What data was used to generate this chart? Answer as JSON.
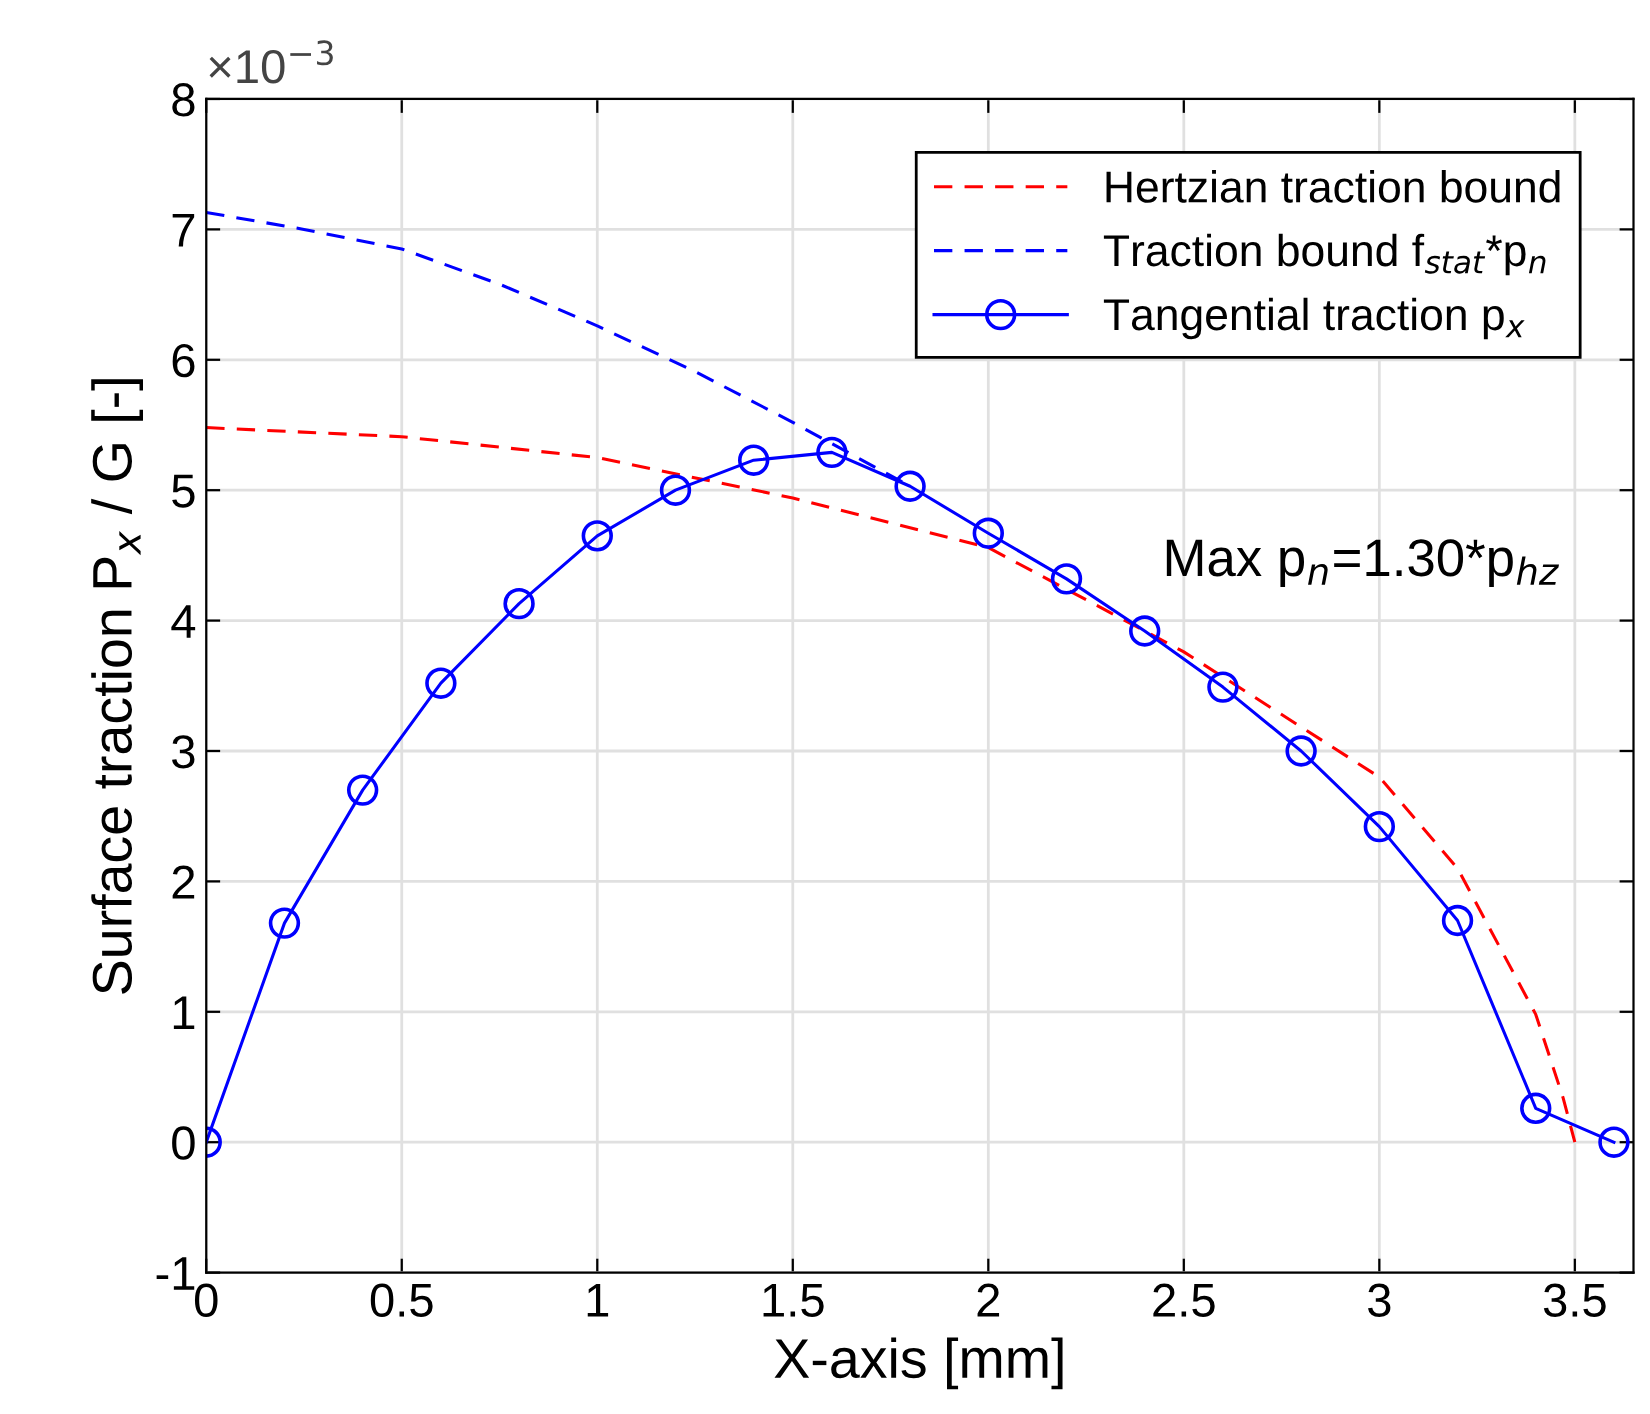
{
  "chart_data": {
    "type": "line",
    "xlabel": "X-axis [mm]",
    "ylabel": "Surface traction P$_{x}$ / G [-]",
    "annotations": [
      "×10$^{−3}$",
      "Max p$_{n}$=1.30*p$_{hz}$"
    ],
    "series": [
      {
        "name": "Hertzian traction bound",
        "color": "#ff0000",
        "line_style": "dashed",
        "marker": "none",
        "x": [
          0,
          0.5,
          1,
          1.5,
          2,
          2.5,
          3,
          3.2,
          3.4,
          3.47,
          3.5
        ],
        "values": [
          5.48,
          5.41,
          5.25,
          4.94,
          4.56,
          3.76,
          2.8,
          2.1,
          0.98,
          0.34,
          0
        ]
      },
      {
        "name": "Traction bound f$_{stat}$*p$_{n}$",
        "color": "#0000ff",
        "line_style": "dashed",
        "marker": "none",
        "x": [
          0,
          0.25,
          0.5,
          0.75,
          1,
          1.25,
          1.5,
          1.8
        ],
        "values": [
          7.13,
          7.0,
          6.85,
          6.58,
          6.26,
          5.91,
          5.52,
          5.03
        ]
      },
      {
        "name": "Tangential traction p$_{x}$",
        "color": "#0000ff",
        "line_style": "solid",
        "marker": "circle",
        "x": [
          0,
          0.2,
          0.4,
          0.6,
          0.8,
          1,
          1.2,
          1.4,
          1.6,
          1.8,
          2,
          2.2,
          2.4,
          2.6,
          2.8,
          3,
          3.2,
          3.4,
          3.6
        ],
        "values": [
          0,
          1.68,
          2.7,
          3.52,
          4.13,
          4.65,
          5.0,
          5.23,
          5.29,
          5.03,
          4.67,
          4.32,
          3.92,
          3.49,
          3.0,
          2.42,
          1.7,
          0.26,
          0
        ]
      }
    ],
    "xlim": [
      0,
      3.65
    ],
    "xticks": [
      0,
      0.5,
      1,
      1.5,
      2,
      2.5,
      3,
      3.5
    ],
    "ylim": [
      -1,
      8
    ],
    "yticks": [
      -1,
      0,
      1,
      2,
      3,
      4,
      5,
      6,
      7,
      8
    ],
    "grid": true,
    "legend": "top right"
  }
}
